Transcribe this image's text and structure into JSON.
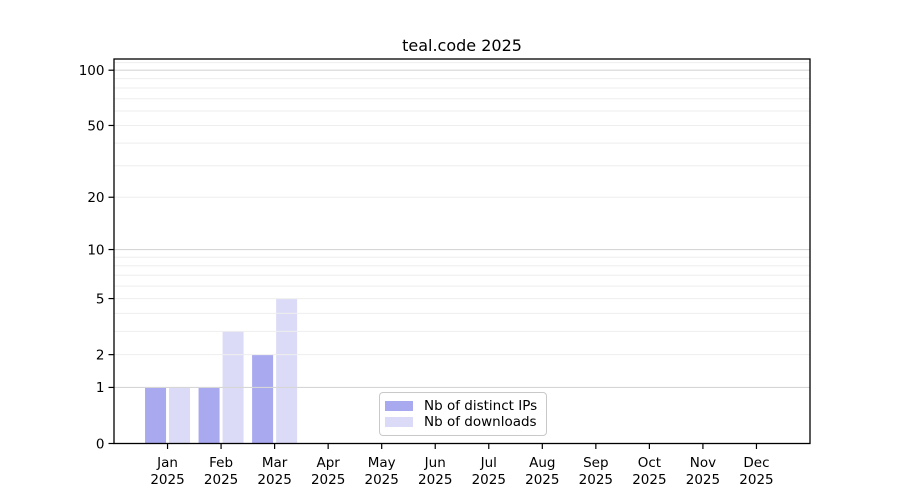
{
  "chart_data": {
    "type": "bar",
    "title": "teal.code 2025",
    "categories": [
      "Jan",
      "Feb",
      "Mar",
      "Apr",
      "May",
      "Jun",
      "Jul",
      "Aug",
      "Sep",
      "Oct",
      "Nov",
      "Dec"
    ],
    "xtick_labels": [
      [
        "Jan",
        "2025"
      ],
      [
        "Feb",
        "2025"
      ],
      [
        "Mar",
        "2025"
      ],
      [
        "Apr",
        "2025"
      ],
      [
        "May",
        "2025"
      ],
      [
        "Jun",
        "2025"
      ],
      [
        "Jul",
        "2025"
      ],
      [
        "Aug",
        "2025"
      ],
      [
        "Sep",
        "2025"
      ],
      [
        "Oct",
        "2025"
      ],
      [
        "Nov",
        "2025"
      ],
      [
        "Dec",
        "2025"
      ]
    ],
    "series": [
      {
        "name": "Nb of distinct IPs",
        "color": "#a9a9f0",
        "values": [
          1,
          1,
          2,
          0,
          0,
          0,
          0,
          0,
          0,
          0,
          0,
          0
        ]
      },
      {
        "name": "Nb of downloads",
        "color": "#dbdbf8",
        "values": [
          1,
          3,
          5,
          0,
          0,
          0,
          0,
          0,
          0,
          0,
          0,
          0
        ]
      }
    ],
    "yscale": "log1p",
    "ylim": [
      0,
      115
    ],
    "yticks": [
      0,
      1,
      2,
      5,
      10,
      20,
      50,
      100
    ],
    "grid": {
      "minor_values": [
        2,
        3,
        4,
        5,
        6,
        7,
        8,
        9,
        20,
        30,
        40,
        50,
        60,
        70,
        80,
        90,
        110
      ],
      "major_values": [
        1,
        10,
        100
      ],
      "minor_color": "#eeeeee",
      "major_color": "#d6d6d6",
      "grid_above_bars": true
    },
    "legend": {
      "position": "lower center",
      "border_color": "#c9c9c9",
      "background": "#ffffff"
    },
    "axis_color": "#000000",
    "text_color": "#000000",
    "background": "#ffffff"
  }
}
